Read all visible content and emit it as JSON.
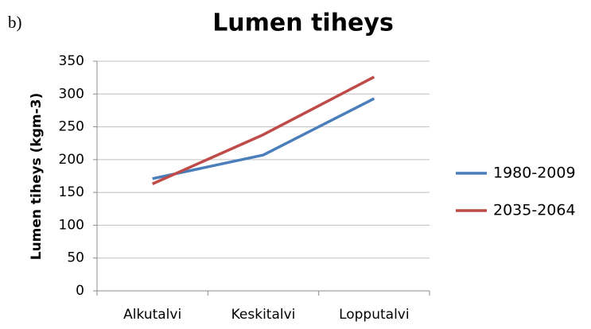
{
  "panel_label": "b)",
  "chart_data": {
    "type": "line",
    "title": "Lumen tiheys",
    "y_label": "Lumen tiheys (kgm-3)",
    "categories": [
      "Alkutalvi",
      "Keskitalvi",
      "Lopputalvi"
    ],
    "series": [
      {
        "name": "1980-2009",
        "color": "#4a7ebb",
        "values": [
          171,
          207,
          293
        ]
      },
      {
        "name": "2035-2064",
        "color": "#be4b48",
        "values": [
          163,
          238,
          326
        ]
      }
    ],
    "ylim": [
      0,
      350
    ],
    "yticks": [
      0,
      50,
      100,
      150,
      200,
      250,
      300,
      350
    ],
    "grid": true,
    "legend": "right"
  }
}
